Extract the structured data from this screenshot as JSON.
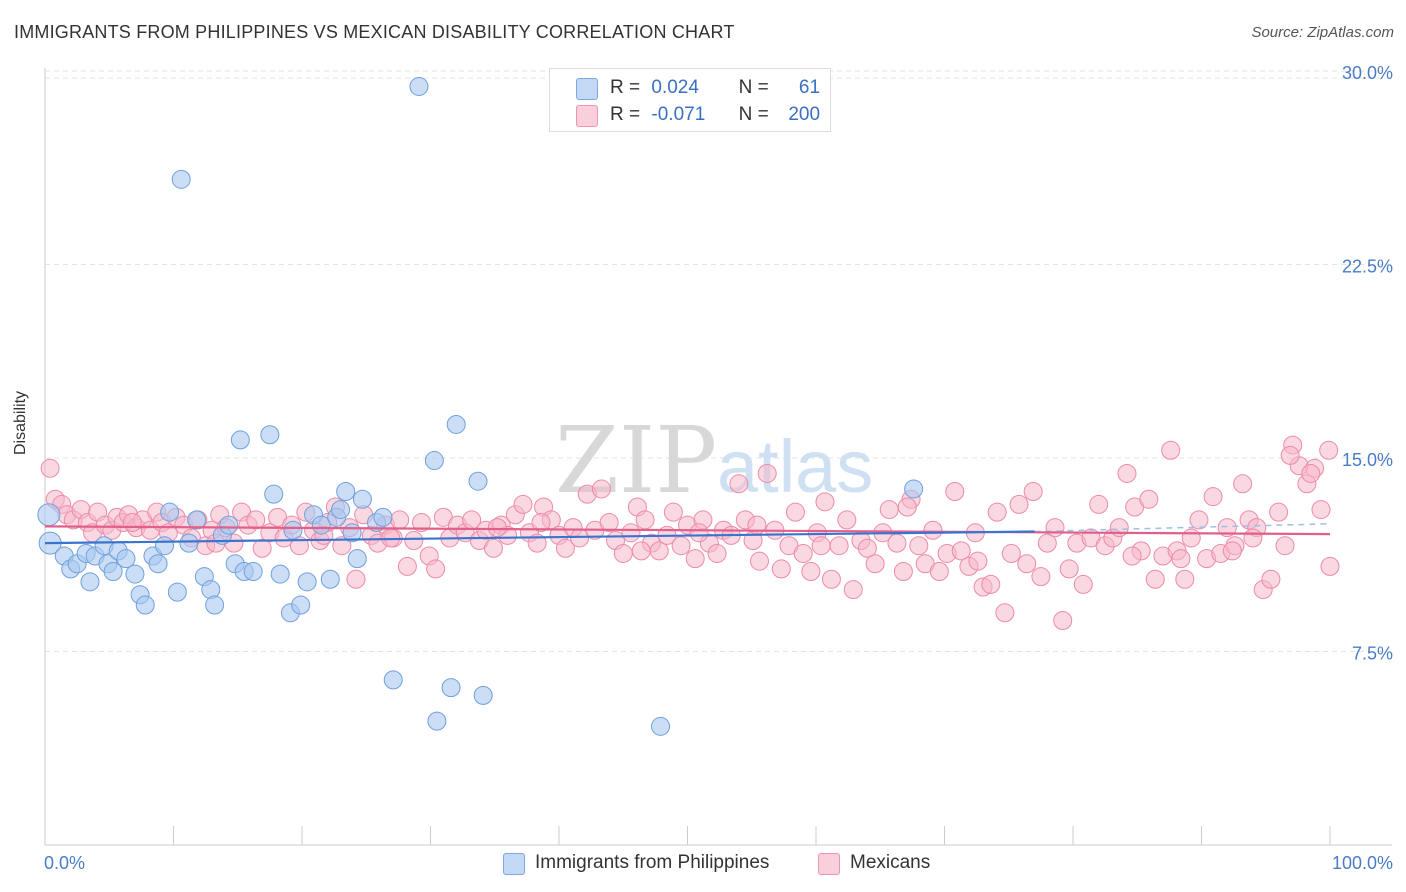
{
  "title": "IMMIGRANTS FROM PHILIPPINES VS MEXICAN DISABILITY CORRELATION CHART",
  "source": "Source: ZipAtlas.com",
  "watermark": "ZIPatlas",
  "legend": {
    "rows": [
      {
        "r_label": "R =",
        "r_value": "0.024",
        "n_label": "N =",
        "n_value": "61",
        "color": "#a8c8f0"
      },
      {
        "r_label": "R =",
        "r_value": "-0.071",
        "n_label": "N =",
        "n_value": "200",
        "color": "#f6b8cb"
      }
    ]
  },
  "bottom_legend": [
    {
      "label": "Immigrants from Philippines",
      "color": "#a8c8f0"
    },
    {
      "label": "Mexicans",
      "color": "#f6b8cb"
    }
  ],
  "chart_data": {
    "type": "scatter",
    "title": "IMMIGRANTS FROM PHILIPPINES VS MEXICAN DISABILITY CORRELATION CHART",
    "xlabel": "",
    "ylabel": "Disability",
    "xlim": [
      0,
      100
    ],
    "ylim": [
      0,
      31.2
    ],
    "x_tick_labels": [
      "0.0%",
      "100.0%"
    ],
    "y_ticks": [
      7.5,
      15.0,
      22.5,
      30.0
    ],
    "y_tick_labels": [
      "7.5%",
      "15.0%",
      "22.5%",
      "30.0%"
    ],
    "grid": true,
    "series": [
      {
        "name": "Immigrants from Philippines",
        "color": "#a8c8f0",
        "stroke": "#6fa0de",
        "trend": {
          "x": [
            0,
            77
          ],
          "y": [
            11.7,
            12.15
          ],
          "color": "#3a74d0"
        },
        "trend_ext": {
          "x": [
            77,
            100
          ],
          "y": [
            12.15,
            12.45
          ]
        },
        "points": [
          [
            0.3,
            12.8
          ],
          [
            0.4,
            11.7
          ],
          [
            1.5,
            11.2
          ],
          [
            2.0,
            10.7
          ],
          [
            2.5,
            10.9
          ],
          [
            3.2,
            11.3
          ],
          [
            3.5,
            10.2
          ],
          [
            3.9,
            11.2
          ],
          [
            4.6,
            11.6
          ],
          [
            4.9,
            10.9
          ],
          [
            5.3,
            10.6
          ],
          [
            5.7,
            11.4
          ],
          [
            6.3,
            11.1
          ],
          [
            7.0,
            10.5
          ],
          [
            7.4,
            9.7
          ],
          [
            7.8,
            9.3
          ],
          [
            8.4,
            11.2
          ],
          [
            8.8,
            10.9
          ],
          [
            9.3,
            11.6
          ],
          [
            9.7,
            12.9
          ],
          [
            10.3,
            9.8
          ],
          [
            10.6,
            25.8
          ],
          [
            11.2,
            11.7
          ],
          [
            11.8,
            12.6
          ],
          [
            12.4,
            10.4
          ],
          [
            12.9,
            9.9
          ],
          [
            13.2,
            9.3
          ],
          [
            13.8,
            12.0
          ],
          [
            14.3,
            12.4
          ],
          [
            14.8,
            10.9
          ],
          [
            15.5,
            10.6
          ],
          [
            15.2,
            15.7
          ],
          [
            16.2,
            10.6
          ],
          [
            17.5,
            15.9
          ],
          [
            17.8,
            13.6
          ],
          [
            18.3,
            10.5
          ],
          [
            19.1,
            9.0
          ],
          [
            19.3,
            12.2
          ],
          [
            19.9,
            9.3
          ],
          [
            20.4,
            10.2
          ],
          [
            20.9,
            12.8
          ],
          [
            21.5,
            12.4
          ],
          [
            22.2,
            10.3
          ],
          [
            22.7,
            12.7
          ],
          [
            23.0,
            13.0
          ],
          [
            23.4,
            13.7
          ],
          [
            23.9,
            12.1
          ],
          [
            24.3,
            11.1
          ],
          [
            24.7,
            13.4
          ],
          [
            25.8,
            12.5
          ],
          [
            26.3,
            12.7
          ],
          [
            27.1,
            6.4
          ],
          [
            29.1,
            29.4
          ],
          [
            30.3,
            14.9
          ],
          [
            30.5,
            4.8
          ],
          [
            31.6,
            6.1
          ],
          [
            32.0,
            16.3
          ],
          [
            33.7,
            14.1
          ],
          [
            34.1,
            5.8
          ],
          [
            47.9,
            4.6
          ],
          [
            67.6,
            13.8
          ]
        ]
      },
      {
        "name": "Mexicans",
        "color": "#f6b8cb",
        "stroke": "#ee8aa8",
        "trend": {
          "x": [
            0,
            100
          ],
          "y": [
            12.35,
            12.05
          ],
          "color": "#e25f8c"
        },
        "points": [
          [
            0.4,
            14.6
          ],
          [
            0.8,
            13.4
          ],
          [
            1.3,
            13.2
          ],
          [
            1.7,
            12.8
          ],
          [
            2.2,
            12.6
          ],
          [
            2.8,
            13.0
          ],
          [
            3.3,
            12.5
          ],
          [
            3.7,
            12.1
          ],
          [
            4.1,
            12.9
          ],
          [
            4.7,
            12.4
          ],
          [
            5.2,
            12.2
          ],
          [
            5.6,
            12.7
          ],
          [
            6.1,
            12.5
          ],
          [
            6.5,
            12.8
          ],
          [
            7.1,
            12.3
          ],
          [
            7.6,
            12.6
          ],
          [
            8.2,
            12.2
          ],
          [
            8.7,
            12.9
          ],
          [
            9.1,
            12.5
          ],
          [
            9.6,
            12.1
          ],
          [
            10.2,
            12.7
          ],
          [
            10.8,
            12.4
          ],
          [
            11.4,
            11.9
          ],
          [
            11.9,
            12.6
          ],
          [
            12.5,
            11.6
          ],
          [
            13.0,
            12.2
          ],
          [
            13.6,
            12.8
          ],
          [
            14.1,
            12.3
          ],
          [
            14.7,
            11.7
          ],
          [
            15.3,
            12.9
          ],
          [
            15.8,
            12.4
          ],
          [
            16.4,
            12.6
          ],
          [
            16.9,
            11.5
          ],
          [
            17.5,
            12.1
          ],
          [
            18.1,
            12.7
          ],
          [
            18.6,
            11.9
          ],
          [
            19.2,
            12.4
          ],
          [
            19.8,
            11.6
          ],
          [
            20.3,
            12.9
          ],
          [
            20.9,
            12.2
          ],
          [
            21.4,
            11.8
          ],
          [
            22.0,
            12.5
          ],
          [
            22.6,
            13.1
          ],
          [
            23.1,
            11.6
          ],
          [
            23.7,
            12.3
          ],
          [
            24.2,
            10.3
          ],
          [
            24.8,
            12.8
          ],
          [
            25.4,
            12.0
          ],
          [
            25.9,
            11.7
          ],
          [
            26.5,
            12.4
          ],
          [
            27.1,
            11.9
          ],
          [
            27.6,
            12.6
          ],
          [
            28.2,
            10.8
          ],
          [
            28.7,
            11.8
          ],
          [
            29.3,
            12.5
          ],
          [
            29.9,
            11.2
          ],
          [
            30.4,
            10.7
          ],
          [
            31.0,
            12.7
          ],
          [
            31.5,
            11.9
          ],
          [
            32.1,
            12.4
          ],
          [
            32.7,
            12.1
          ],
          [
            33.2,
            12.6
          ],
          [
            33.8,
            11.8
          ],
          [
            34.3,
            12.2
          ],
          [
            34.9,
            11.5
          ],
          [
            35.5,
            12.4
          ],
          [
            36.0,
            12.0
          ],
          [
            36.6,
            12.8
          ],
          [
            37.2,
            13.2
          ],
          [
            37.7,
            12.1
          ],
          [
            38.3,
            11.7
          ],
          [
            38.8,
            13.1
          ],
          [
            39.4,
            12.6
          ],
          [
            40.0,
            12.0
          ],
          [
            40.5,
            11.5
          ],
          [
            41.1,
            12.3
          ],
          [
            41.6,
            11.9
          ],
          [
            42.2,
            13.6
          ],
          [
            42.8,
            12.2
          ],
          [
            43.3,
            13.8
          ],
          [
            43.9,
            12.5
          ],
          [
            44.4,
            11.8
          ],
          [
            45.0,
            11.3
          ],
          [
            45.6,
            12.1
          ],
          [
            46.1,
            13.1
          ],
          [
            46.7,
            12.6
          ],
          [
            47.2,
            11.7
          ],
          [
            47.8,
            11.4
          ],
          [
            48.4,
            12.0
          ],
          [
            48.9,
            12.9
          ],
          [
            49.5,
            11.6
          ],
          [
            50.0,
            12.4
          ],
          [
            50.6,
            11.1
          ],
          [
            51.2,
            12.6
          ],
          [
            51.7,
            11.7
          ],
          [
            52.3,
            11.3
          ],
          [
            52.8,
            12.2
          ],
          [
            53.4,
            12.0
          ],
          [
            54.0,
            14.0
          ],
          [
            54.5,
            12.6
          ],
          [
            55.1,
            11.8
          ],
          [
            55.6,
            11.0
          ],
          [
            56.2,
            14.4
          ],
          [
            56.8,
            12.2
          ],
          [
            57.3,
            10.7
          ],
          [
            57.9,
            11.6
          ],
          [
            58.4,
            12.9
          ],
          [
            59.0,
            11.3
          ],
          [
            59.6,
            10.6
          ],
          [
            60.1,
            12.1
          ],
          [
            60.7,
            13.3
          ],
          [
            61.2,
            10.3
          ],
          [
            61.8,
            11.6
          ],
          [
            62.4,
            12.6
          ],
          [
            62.9,
            9.9
          ],
          [
            63.5,
            11.8
          ],
          [
            64.0,
            11.5
          ],
          [
            64.6,
            10.9
          ],
          [
            65.2,
            12.1
          ],
          [
            65.7,
            13.0
          ],
          [
            66.3,
            11.7
          ],
          [
            66.8,
            10.6
          ],
          [
            67.4,
            13.4
          ],
          [
            68.0,
            11.6
          ],
          [
            68.5,
            10.9
          ],
          [
            69.1,
            12.2
          ],
          [
            69.6,
            10.6
          ],
          [
            70.2,
            11.3
          ],
          [
            70.8,
            13.7
          ],
          [
            71.3,
            11.4
          ],
          [
            71.9,
            10.8
          ],
          [
            72.4,
            12.1
          ],
          [
            73.0,
            10.0
          ],
          [
            73.6,
            10.1
          ],
          [
            74.1,
            12.9
          ],
          [
            74.7,
            9.0
          ],
          [
            75.2,
            11.3
          ],
          [
            75.8,
            13.2
          ],
          [
            76.4,
            10.9
          ],
          [
            76.9,
            13.7
          ],
          [
            77.5,
            10.4
          ],
          [
            78.0,
            11.7
          ],
          [
            78.6,
            12.3
          ],
          [
            79.2,
            8.7
          ],
          [
            79.7,
            10.7
          ],
          [
            80.3,
            11.7
          ],
          [
            80.8,
            10.1
          ],
          [
            81.4,
            11.9
          ],
          [
            82.0,
            13.2
          ],
          [
            82.5,
            11.6
          ],
          [
            83.1,
            11.9
          ],
          [
            83.6,
            12.3
          ],
          [
            84.2,
            14.4
          ],
          [
            84.8,
            13.1
          ],
          [
            85.3,
            11.4
          ],
          [
            85.9,
            13.4
          ],
          [
            86.4,
            10.3
          ],
          [
            87.0,
            11.2
          ],
          [
            87.6,
            15.3
          ],
          [
            88.1,
            11.4
          ],
          [
            88.7,
            10.3
          ],
          [
            89.2,
            11.9
          ],
          [
            89.8,
            12.6
          ],
          [
            90.4,
            11.1
          ],
          [
            90.9,
            13.5
          ],
          [
            91.5,
            11.3
          ],
          [
            92.0,
            12.3
          ],
          [
            92.6,
            11.6
          ],
          [
            93.2,
            14.0
          ],
          [
            93.7,
            12.6
          ],
          [
            94.3,
            12.3
          ],
          [
            94.8,
            9.9
          ],
          [
            95.4,
            10.3
          ],
          [
            96.0,
            12.9
          ],
          [
            96.5,
            11.6
          ],
          [
            97.1,
            15.5
          ],
          [
            97.6,
            14.7
          ],
          [
            98.2,
            14.0
          ],
          [
            98.8,
            14.6
          ],
          [
            99.3,
            13.0
          ],
          [
            99.9,
            15.3
          ],
          [
            96.9,
            15.1
          ],
          [
            98.5,
            14.4
          ],
          [
            94.0,
            11.9
          ],
          [
            100.0,
            10.8
          ],
          [
            88.4,
            11.1
          ],
          [
            72.6,
            11.0
          ],
          [
            46.4,
            11.4
          ],
          [
            26.9,
            11.9
          ],
          [
            21.7,
            12.0
          ],
          [
            13.3,
            11.7
          ],
          [
            6.8,
            12.5
          ],
          [
            35.2,
            12.3
          ],
          [
            50.9,
            12.1
          ],
          [
            60.4,
            11.6
          ],
          [
            84.6,
            11.2
          ],
          [
            92.4,
            11.4
          ],
          [
            38.6,
            12.5
          ],
          [
            55.4,
            12.4
          ],
          [
            67.1,
            13.1
          ]
        ]
      }
    ]
  }
}
